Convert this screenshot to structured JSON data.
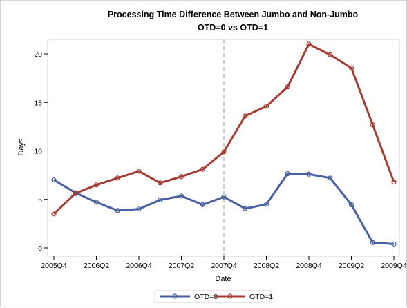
{
  "chart_data": {
    "type": "line",
    "title": "Processing Time Difference Between Jumbo and Non-Jumbo",
    "subtitle": "OTD=0 vs OTD=1",
    "xlabel": "Date",
    "ylabel": "Days",
    "x": [
      "2005Q4",
      "2006Q1",
      "2006Q2",
      "2006Q3",
      "2006Q4",
      "2007Q1",
      "2007Q2",
      "2007Q3",
      "2007Q4",
      "2008Q1",
      "2008Q2",
      "2008Q3",
      "2008Q4",
      "2009Q1",
      "2009Q2",
      "2009Q3",
      "2009Q4"
    ],
    "x_tick_labels": [
      "2005Q4",
      "2006Q2",
      "2006Q4",
      "2007Q2",
      "2007Q4",
      "2008Q2",
      "2008Q4",
      "2009Q2",
      "2009Q4"
    ],
    "y_ticks": [
      0,
      5,
      10,
      15,
      20
    ],
    "ylim": [
      -0.5,
      22
    ],
    "reference_line": {
      "x": "2007Q4",
      "style": "dashed",
      "color": "#bdbdbd"
    },
    "grid": false,
    "legend_position": "bottom",
    "series": [
      {
        "name": "OTD=0",
        "color": "#4a5fa0",
        "values": [
          7.0,
          5.7,
          4.7,
          3.85,
          4.0,
          4.95,
          5.35,
          4.45,
          5.25,
          4.05,
          4.5,
          7.65,
          7.6,
          7.2,
          4.45,
          0.55,
          0.4
        ]
      },
      {
        "name": "OTD=1",
        "color": "#a43b32",
        "values": [
          3.5,
          5.6,
          6.5,
          7.2,
          7.9,
          6.7,
          7.35,
          8.1,
          9.9,
          13.6,
          14.6,
          16.6,
          21.0,
          19.9,
          18.55,
          12.7,
          6.8
        ]
      }
    ]
  }
}
